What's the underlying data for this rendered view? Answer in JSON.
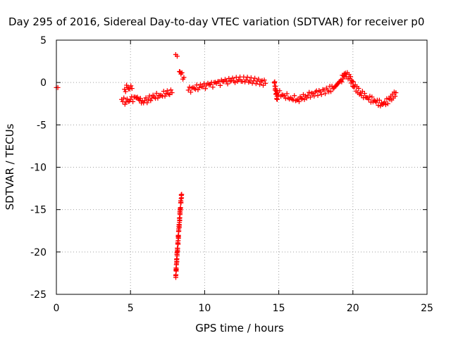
{
  "chart_data": {
    "type": "scatter",
    "title": "Day 295 of 2016, Sidereal Day-to-day VTEC variation (SDTVAR) for receiver p0",
    "xlabel": "GPS time / hours",
    "ylabel": "SDTVAR / TECUs",
    "xlim": [
      0,
      25
    ],
    "ylim": [
      -25,
      5
    ],
    "x_ticks": [
      0,
      5,
      10,
      15,
      20,
      25
    ],
    "y_ticks": [
      5,
      0,
      -5,
      -10,
      -15,
      -20,
      -25
    ],
    "grid": true,
    "grid_style": "dotted",
    "marker": "plus",
    "color": "#ff0000",
    "segments": [
      {
        "x": [
          0.0,
          0.1
        ],
        "y": [
          -0.6,
          -0.6
        ]
      },
      {
        "x": [
          4.4,
          4.7,
          5.0,
          5.4,
          5.8,
          6.2,
          6.6,
          7.0,
          7.4,
          7.8
        ],
        "y": [
          -2.0,
          -2.3,
          -2.0,
          -1.8,
          -2.2,
          -2.0,
          -1.7,
          -1.5,
          -1.3,
          -1.2
        ]
      },
      {
        "x": [
          4.6,
          4.8,
          5.1
        ],
        "y": [
          -0.8,
          -0.6,
          -0.7
        ]
      },
      {
        "x": [
          8.05,
          8.15
        ],
        "y": [
          3.3,
          3.1
        ]
      },
      {
        "x": [
          8.3,
          8.4,
          8.6
        ],
        "y": [
          1.3,
          1.0,
          0.6
        ]
      },
      {
        "x": [
          8.05,
          8.1,
          8.15,
          8.2,
          8.25,
          8.3,
          8.35,
          8.4,
          8.45
        ],
        "y": [
          -22.8,
          -21.5,
          -20.0,
          -19.0,
          -17.5,
          -16.5,
          -15.0,
          -14.0,
          -13.2
        ]
      },
      {
        "x": [
          8.9,
          9.3,
          9.8,
          10.3,
          10.8,
          11.3,
          11.8,
          12.3,
          12.8,
          13.3,
          13.8,
          14.1
        ],
        "y": [
          -0.9,
          -0.7,
          -0.5,
          -0.3,
          -0.1,
          0.1,
          0.2,
          0.3,
          0.3,
          0.2,
          0.1,
          -0.1
        ]
      },
      {
        "x": [
          14.9,
          15.3,
          15.8,
          16.3,
          16.8,
          17.3,
          17.8,
          18.3,
          18.8,
          19.2,
          19.5,
          19.8,
          20.1,
          20.5,
          21.0,
          21.5,
          22.0,
          22.5,
          22.9
        ],
        "y": [
          -1.2,
          -1.5,
          -1.8,
          -2.0,
          -1.6,
          -1.3,
          -1.1,
          -0.9,
          -0.5,
          0.3,
          1.1,
          0.5,
          -0.5,
          -1.2,
          -1.8,
          -2.2,
          -2.6,
          -2.0,
          -1.2
        ]
      },
      {
        "x": [
          14.7,
          14.9
        ],
        "y": [
          0.0,
          -2.0
        ]
      }
    ]
  }
}
